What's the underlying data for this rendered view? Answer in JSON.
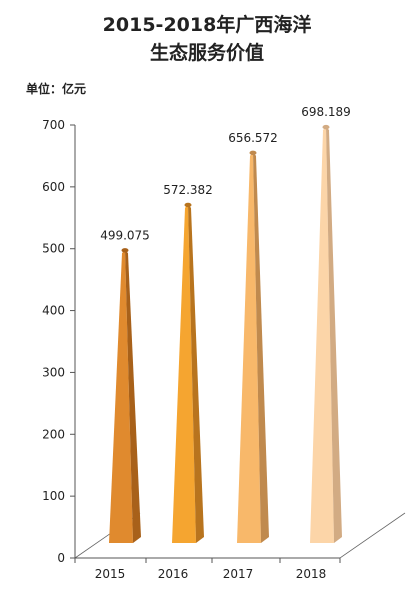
{
  "chart_data": {
    "type": "bar",
    "title_line1": "2015-2018年广西海洋",
    "title_line2": "生态服务价值",
    "unit_label": "单位：亿元",
    "categories": [
      "2015",
      "2016",
      "2017",
      "2018"
    ],
    "values": [
      499.075,
      572.382,
      656.572,
      698.189
    ],
    "value_labels": [
      "499.075",
      "572.382",
      "656.572",
      "698.189"
    ],
    "y_ticks": [
      "0",
      "100",
      "200",
      "300",
      "400",
      "500",
      "600",
      "700"
    ],
    "ylim": [
      0,
      700
    ],
    "grid": false,
    "bar_colors": [
      "#E08A2E",
      "#F5A530",
      "#F8B86A",
      "#FCD5A8"
    ],
    "bar_side_colors": [
      "#A8611A",
      "#B8741E",
      "#C08A4E",
      "#D2AB83"
    ]
  }
}
